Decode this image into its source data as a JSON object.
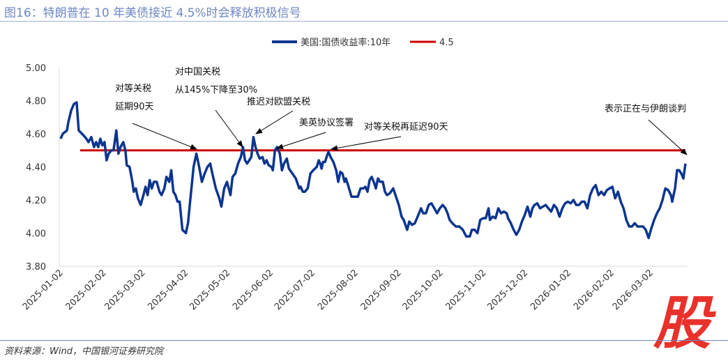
{
  "title": "图16：特朗普在 10 年美债接近 4.5%时会释放积极信号",
  "source": "资料来源：Wind，中国银河证券研究院",
  "logo_text": "股",
  "chart_data": {
    "type": "line",
    "title": "图16：特朗普在 10 年美债接近 4.5%时会释放积极信号",
    "xlabel": "",
    "ylabel": "",
    "ylim": [
      3.8,
      5.0
    ],
    "yticks": [
      "5.00",
      "4.80",
      "4.60",
      "4.40",
      "4.20",
      "4.00",
      "3.80"
    ],
    "ytick_values": [
      5.0,
      4.8,
      4.6,
      4.4,
      4.2,
      4.0,
      3.8
    ],
    "x_unit": "days since 2025-01-02",
    "xlim": [
      0,
      450
    ],
    "xticks": [
      "2025-01-02",
      "2025-02-02",
      "2025-03-02",
      "2025-04-02",
      "2025-05-02",
      "2025-06-02",
      "2025-07-02",
      "2025-08-02",
      "2025-09-02",
      "2025-10-02",
      "2025-11-02",
      "2025-12-02",
      "2026-01-02",
      "2026-02-02",
      "2026-03-02"
    ],
    "xtick_days": [
      0,
      31,
      59,
      90,
      120,
      151,
      181,
      212,
      243,
      273,
      304,
      334,
      365,
      396,
      424
    ],
    "legend_position": "top",
    "grid": false,
    "colors": {
      "series": "#0c3590",
      "threshold": "#cc0000"
    },
    "series": [
      {
        "name": "美国:国债收益率:10年",
        "points": [
          [
            0,
            4.57
          ],
          [
            1.5,
            4.6
          ],
          [
            4.5,
            4.62
          ],
          [
            5.5,
            4.67
          ],
          [
            7.5,
            4.74
          ],
          [
            9.5,
            4.78
          ],
          [
            11.5,
            4.79
          ],
          [
            13,
            4.62
          ],
          [
            16.5,
            4.59
          ],
          [
            18.5,
            4.57
          ],
          [
            20,
            4.55
          ],
          [
            22,
            4.58
          ],
          [
            24,
            4.52
          ],
          [
            25.5,
            4.55
          ],
          [
            27,
            4.52
          ],
          [
            28.5,
            4.57
          ],
          [
            30,
            4.53
          ],
          [
            31.5,
            4.55
          ],
          [
            33,
            4.44
          ],
          [
            34.5,
            4.48
          ],
          [
            36.5,
            4.5
          ],
          [
            38,
            4.5
          ],
          [
            40,
            4.62
          ],
          [
            41.5,
            4.48
          ],
          [
            43,
            4.52
          ],
          [
            45,
            4.55
          ],
          [
            46.5,
            4.5
          ],
          [
            47.5,
            4.41
          ],
          [
            49.5,
            4.4
          ],
          [
            51.5,
            4.31
          ],
          [
            52.5,
            4.25
          ],
          [
            54,
            4.27
          ],
          [
            55.5,
            4.21
          ],
          [
            57.5,
            4.17
          ],
          [
            59.5,
            4.23
          ],
          [
            61,
            4.28
          ],
          [
            62.5,
            4.23
          ],
          [
            64,
            4.32
          ],
          [
            65.5,
            4.27
          ],
          [
            67,
            4.31
          ],
          [
            69,
            4.31
          ],
          [
            71,
            4.25
          ],
          [
            72.5,
            4.23
          ],
          [
            74.5,
            4.27
          ],
          [
            76,
            4.34
          ],
          [
            78,
            4.31
          ],
          [
            79.5,
            4.38
          ],
          [
            81,
            4.25
          ],
          [
            82.5,
            4.23
          ],
          [
            84,
            4.19
          ],
          [
            85.5,
            4.19
          ],
          [
            87.5,
            4.02
          ],
          [
            90,
            4.0
          ],
          [
            91.5,
            4.06
          ],
          [
            93,
            4.19
          ],
          [
            95.5,
            4.4
          ],
          [
            97.5,
            4.48
          ],
          [
            99.5,
            4.4
          ],
          [
            101.5,
            4.31
          ],
          [
            103.5,
            4.36
          ],
          [
            105.5,
            4.4
          ],
          [
            107.5,
            4.42
          ],
          [
            109,
            4.36
          ],
          [
            111.5,
            4.27
          ],
          [
            114,
            4.21
          ],
          [
            115.5,
            4.16
          ],
          [
            117.5,
            4.27
          ],
          [
            119.5,
            4.31
          ],
          [
            122,
            4.23
          ],
          [
            123.5,
            4.34
          ],
          [
            125.5,
            4.36
          ],
          [
            127.5,
            4.42
          ],
          [
            129.5,
            4.46
          ],
          [
            131,
            4.52
          ],
          [
            132.5,
            4.44
          ],
          [
            134,
            4.42
          ],
          [
            135.5,
            4.44
          ],
          [
            137,
            4.46
          ],
          [
            138.5,
            4.58
          ],
          [
            140,
            4.52
          ],
          [
            141.5,
            4.48
          ],
          [
            143,
            4.45
          ],
          [
            145,
            4.46
          ],
          [
            146.5,
            4.42
          ],
          [
            148,
            4.44
          ],
          [
            149.5,
            4.41
          ],
          [
            151.5,
            4.4
          ],
          [
            152.5,
            4.38
          ],
          [
            154,
            4.5
          ],
          [
            155.5,
            4.52
          ],
          [
            157.5,
            4.48
          ],
          [
            159,
            4.38
          ],
          [
            160.5,
            4.42
          ],
          [
            162.5,
            4.45
          ],
          [
            164,
            4.39
          ],
          [
            166.5,
            4.36
          ],
          [
            169,
            4.33
          ],
          [
            171.5,
            4.27
          ],
          [
            172.5,
            4.28
          ],
          [
            174,
            4.25
          ],
          [
            175.5,
            4.25
          ],
          [
            177.5,
            4.27
          ],
          [
            179.5,
            4.36
          ],
          [
            181.5,
            4.38
          ],
          [
            184,
            4.4
          ],
          [
            185.5,
            4.44
          ],
          [
            186.5,
            4.42
          ],
          [
            187.5,
            4.39
          ],
          [
            188.5,
            4.43
          ],
          [
            190,
            4.43
          ],
          [
            191.5,
            4.47
          ],
          [
            192.5,
            4.49
          ],
          [
            194,
            4.46
          ],
          [
            196,
            4.43
          ],
          [
            198,
            4.38
          ],
          [
            199.5,
            4.31
          ],
          [
            201,
            4.37
          ],
          [
            202.5,
            4.36
          ],
          [
            204,
            4.31
          ],
          [
            205,
            4.33
          ],
          [
            206.5,
            4.29
          ],
          [
            209,
            4.22
          ],
          [
            211.5,
            4.22
          ],
          [
            213.5,
            4.22
          ],
          [
            215.5,
            4.27
          ],
          [
            217.5,
            4.27
          ],
          [
            219,
            4.28
          ],
          [
            220.5,
            4.25
          ],
          [
            222,
            4.32
          ],
          [
            223.5,
            4.34
          ],
          [
            225,
            4.31
          ],
          [
            226.5,
            4.27
          ],
          [
            228,
            4.33
          ],
          [
            229.5,
            4.31
          ],
          [
            231.5,
            4.31
          ],
          [
            233,
            4.25
          ],
          [
            234.5,
            4.23
          ],
          [
            236.5,
            4.24
          ],
          [
            239,
            4.27
          ],
          [
            241,
            4.22
          ],
          [
            243,
            4.17
          ],
          [
            245,
            4.1
          ],
          [
            246.5,
            4.08
          ],
          [
            249,
            4.02
          ],
          [
            250.5,
            4.07
          ],
          [
            252.5,
            4.05
          ],
          [
            254.5,
            4.06
          ],
          [
            256.5,
            4.1
          ],
          [
            259,
            4.15
          ],
          [
            260.5,
            4.12
          ],
          [
            262.5,
            4.12
          ],
          [
            264.5,
            4.17
          ],
          [
            266.5,
            4.18
          ],
          [
            268.5,
            4.15
          ],
          [
            270.5,
            4.12
          ],
          [
            272.5,
            4.15
          ],
          [
            274.5,
            4.17
          ],
          [
            276.5,
            4.15
          ],
          [
            278,
            4.12
          ],
          [
            279.5,
            4.08
          ],
          [
            281.5,
            4.06
          ],
          [
            284,
            4.04
          ],
          [
            286.5,
            4.04
          ],
          [
            289,
            4.02
          ],
          [
            291.5,
            3.98
          ],
          [
            294,
            3.98
          ],
          [
            295.5,
            4.02
          ],
          [
            297.5,
            4.02
          ],
          [
            299.5,
            4.0
          ],
          [
            301.5,
            4.08
          ],
          [
            303.5,
            4.09
          ],
          [
            305.5,
            4.09
          ],
          [
            307.5,
            4.15
          ],
          [
            308.5,
            4.08
          ],
          [
            310.5,
            4.1
          ],
          [
            312.5,
            4.09
          ],
          [
            314.5,
            4.15
          ],
          [
            316.5,
            4.12
          ],
          [
            318.5,
            4.13
          ],
          [
            320.5,
            4.12
          ],
          [
            321.5,
            4.09
          ],
          [
            323.5,
            4.06
          ],
          [
            325.5,
            4.02
          ],
          [
            327.5,
            3.99
          ],
          [
            329.5,
            4.02
          ],
          [
            331.5,
            4.07
          ],
          [
            333.5,
            4.11
          ],
          [
            335.5,
            4.16
          ],
          [
            337.5,
            4.1
          ],
          [
            339,
            4.15
          ],
          [
            340.5,
            4.17
          ],
          [
            342.5,
            4.18
          ],
          [
            344.5,
            4.15
          ],
          [
            346.5,
            4.16
          ],
          [
            348.5,
            4.17
          ],
          [
            350.5,
            4.15
          ],
          [
            352.5,
            4.13
          ],
          [
            354.5,
            4.17
          ],
          [
            356.5,
            4.15
          ],
          [
            358.5,
            4.1
          ],
          [
            360.5,
            4.15
          ],
          [
            362.5,
            4.18
          ],
          [
            364.5,
            4.19
          ],
          [
            366.5,
            4.18
          ],
          [
            368.5,
            4.2
          ],
          [
            370.5,
            4.17
          ],
          [
            372.5,
            4.17
          ],
          [
            374.5,
            4.19
          ],
          [
            376.5,
            4.19
          ],
          [
            378.5,
            4.15
          ],
          [
            380.5,
            4.23
          ],
          [
            382.5,
            4.27
          ],
          [
            384.5,
            4.29
          ],
          [
            386.5,
            4.23
          ],
          [
            388.5,
            4.25
          ],
          [
            390.5,
            4.23
          ],
          [
            392.5,
            4.26
          ],
          [
            394.5,
            4.27
          ],
          [
            396.5,
            4.28
          ],
          [
            398.5,
            4.21
          ],
          [
            400.5,
            4.25
          ],
          [
            402.5,
            4.19
          ],
          [
            404.5,
            4.15
          ],
          [
            406.5,
            4.08
          ],
          [
            408.5,
            4.04
          ],
          [
            410.5,
            4.04
          ],
          [
            412.5,
            4.06
          ],
          [
            414.5,
            4.04
          ],
          [
            416.5,
            4.04
          ],
          [
            418.5,
            4.04
          ],
          [
            420.5,
            4.02
          ],
          [
            422.5,
            3.97
          ],
          [
            424.5,
            4.03
          ],
          [
            426.5,
            4.08
          ],
          [
            428.5,
            4.12
          ],
          [
            430.5,
            4.15
          ],
          [
            432.5,
            4.2
          ],
          [
            434.5,
            4.27
          ],
          [
            436.5,
            4.26
          ],
          [
            438.5,
            4.23
          ],
          [
            439.5,
            4.19
          ],
          [
            441.5,
            4.27
          ],
          [
            443,
            4.38
          ],
          [
            444.5,
            4.38
          ],
          [
            446,
            4.36
          ],
          [
            447.5,
            4.33
          ],
          [
            449,
            4.42
          ]
        ]
      },
      {
        "name": "4.5",
        "points": [
          [
            14,
            4.5
          ],
          [
            449,
            4.5
          ]
        ]
      }
    ],
    "annotations": [
      {
        "lines": [
          "对等关税",
          "延期90天"
        ]
      },
      {
        "lines": [
          "对中国关税",
          "从145%下降至30%"
        ]
      },
      {
        "lines": [
          "推迟对欧盟关税"
        ]
      },
      {
        "lines": [
          "美英协议签署"
        ]
      },
      {
        "lines": [
          "对等关税再延迟90天"
        ]
      },
      {
        "lines": [
          "表示正在与伊朗谈判"
        ]
      }
    ]
  }
}
